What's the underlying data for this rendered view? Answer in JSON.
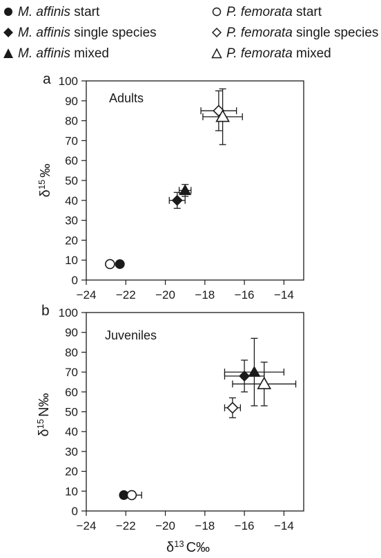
{
  "legend": [
    {
      "marker": "circle-filled",
      "species": "M. affinis",
      "suffix": " start"
    },
    {
      "marker": "circle-open",
      "species": "P. femorata",
      "suffix": " start"
    },
    {
      "marker": "diamond-filled",
      "species": "M. affinis",
      "suffix": " single species"
    },
    {
      "marker": "diamond-open",
      "species": "P. femorata",
      "suffix": " single species"
    },
    {
      "marker": "triangle-filled",
      "species": "M. affinis",
      "suffix": " mixed"
    },
    {
      "marker": "triangle-open",
      "species": "P. femorata",
      "suffix": " mixed"
    }
  ],
  "chart_data": [
    {
      "type": "scatter",
      "panel": "a",
      "title": "Adults",
      "ylabel": "δ15 ‰",
      "xlabel": "",
      "xlim": [
        -24,
        -13
      ],
      "ylim": [
        0,
        100
      ],
      "xticks": [
        -24,
        -22,
        -20,
        -18,
        -16,
        -14
      ],
      "yticks": [
        0,
        10,
        20,
        30,
        40,
        50,
        60,
        70,
        80,
        90,
        100
      ],
      "series": [
        {
          "name": "M. affinis start",
          "marker": "circle-filled",
          "x": -22.3,
          "y": 8,
          "xerr": 0.1,
          "yerr": 0.5
        },
        {
          "name": "P. femorata start",
          "marker": "circle-open",
          "x": -22.8,
          "y": 8,
          "xerr": 0.1,
          "yerr": 0.5
        },
        {
          "name": "M. affinis single species",
          "marker": "diamond-filled",
          "x": -19.4,
          "y": 40,
          "xerr": 0.4,
          "yerr": 4
        },
        {
          "name": "P. femorata single species",
          "marker": "diamond-open",
          "x": -17.3,
          "y": 85,
          "xerr": 0.9,
          "yerr": 10
        },
        {
          "name": "M. affinis mixed",
          "marker": "triangle-filled",
          "x": -19.0,
          "y": 45,
          "xerr": 0.3,
          "yerr": 3
        },
        {
          "name": "P. femorata mixed",
          "marker": "triangle-open",
          "x": -17.1,
          "y": 82,
          "xerr": 1.0,
          "yerr": 14
        }
      ]
    },
    {
      "type": "scatter",
      "panel": "b",
      "title": "Juveniles",
      "ylabel": "δ15 N‰",
      "xlabel": "δ13 C‰",
      "xlim": [
        -24,
        -13
      ],
      "ylim": [
        0,
        100
      ],
      "xticks": [
        -24,
        -22,
        -20,
        -18,
        -16,
        -14
      ],
      "yticks": [
        0,
        10,
        20,
        30,
        40,
        50,
        60,
        70,
        80,
        90,
        100
      ],
      "series": [
        {
          "name": "M. affinis start",
          "marker": "circle-filled",
          "x": -22.1,
          "y": 8,
          "xerr": 0.1,
          "yerr": 0.5
        },
        {
          "name": "P. femorata start",
          "marker": "circle-open",
          "x": -21.7,
          "y": 8,
          "xerr": 0.5,
          "yerr": 0.5
        },
        {
          "name": "M. affinis single species",
          "marker": "diamond-filled",
          "x": -16.0,
          "y": 68,
          "xerr": 1.0,
          "yerr": 8
        },
        {
          "name": "P. femorata single species",
          "marker": "diamond-open",
          "x": -16.6,
          "y": 52,
          "xerr": 0.4,
          "yerr": 5
        },
        {
          "name": "M. affinis mixed",
          "marker": "triangle-filled",
          "x": -15.5,
          "y": 70,
          "xerr": 1.5,
          "yerr": 17
        },
        {
          "name": "P. femorata mixed",
          "marker": "triangle-open",
          "x": -15.0,
          "y": 64,
          "xerr": 1.6,
          "yerr": 11
        }
      ]
    }
  ]
}
